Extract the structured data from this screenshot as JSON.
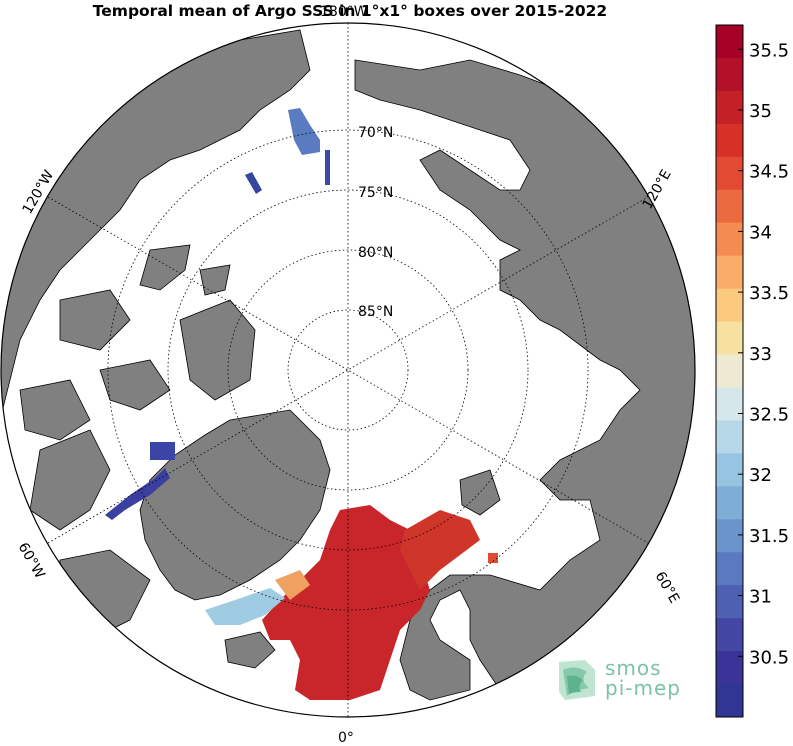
{
  "title": "Temporal mean of Argo SSS in 1°x1° boxes over 2015-2022",
  "map": {
    "projection": "north polar stereographic",
    "center": "North Pole",
    "boundary_latitude": 60,
    "land_color": "#808080",
    "ocean_color": "#ffffff",
    "parallel_labels": [
      "70°N",
      "75°N",
      "80°N",
      "85°N"
    ],
    "meridian_labels": [
      {
        "label": "180°W",
        "lon": 180
      },
      {
        "label": "120°W",
        "lon": -120
      },
      {
        "label": "120°E",
        "lon": 120
      },
      {
        "label": "60°W",
        "lon": -60
      },
      {
        "label": "60°E",
        "lon": 60
      },
      {
        "label": "0°",
        "lon": 0
      }
    ],
    "salinity_patches": [
      {
        "region": "Norwegian / Greenland Sea",
        "sss_approx": 35.0
      },
      {
        "region": "East Greenland coast",
        "sss_approx": 32.5
      },
      {
        "region": "Baffin Bay",
        "sss_approx": 30.8
      },
      {
        "region": "Beaufort Sea",
        "sss_approx": 31.0
      },
      {
        "region": "Barents Sea",
        "sss_approx": 34.9
      }
    ]
  },
  "colorbar": {
    "min": 30,
    "max": 35.7,
    "tick_labels": [
      "35.5",
      "35",
      "34.5",
      "34",
      "33.5",
      "33",
      "32.5",
      "32",
      "31.5",
      "31",
      "30.5"
    ],
    "colors": [
      "#a50026",
      "#b3112a",
      "#c42027",
      "#d73027",
      "#e34a33",
      "#ec6a3f",
      "#f48c52",
      "#f8ad68",
      "#fcca7f",
      "#f6e1a1",
      "#ede9d2",
      "#d6e7ec",
      "#b6d8e9",
      "#97c4e0",
      "#7eadd6",
      "#6a94cb",
      "#5a79bf",
      "#4d60b1",
      "#4346a3",
      "#3b3397",
      "#313695"
    ]
  },
  "logo": {
    "line1": "smos",
    "line2": "pi-mep"
  }
}
